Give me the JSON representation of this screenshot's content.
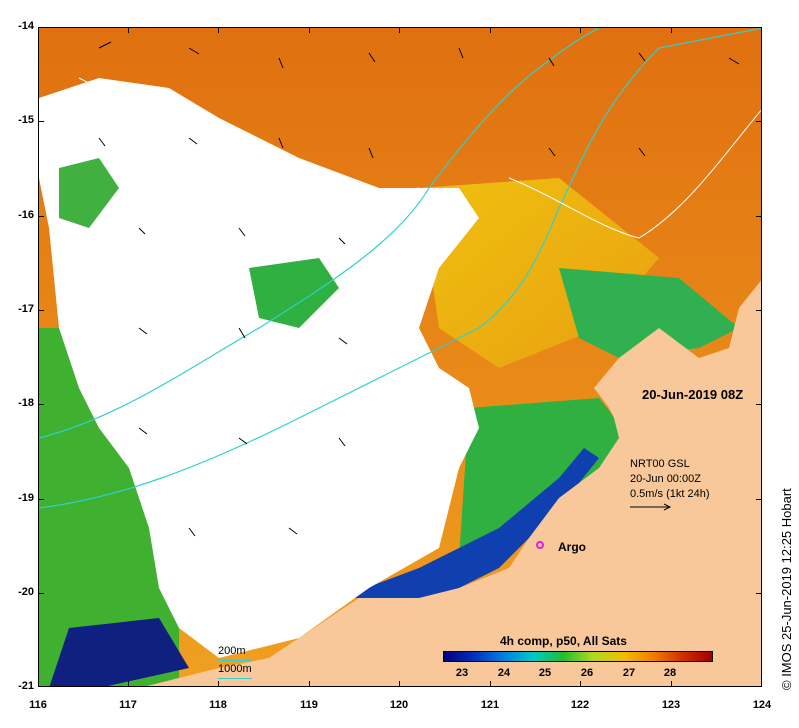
{
  "map": {
    "timestamp": "20-Jun-2019 08Z",
    "lat_ticks": [
      "-14",
      "-15",
      "-16",
      "-17",
      "-18",
      "-19",
      "-20",
      "-21"
    ],
    "lon_ticks": [
      "116",
      "117",
      "118",
      "119",
      "120",
      "121",
      "122",
      "123",
      "124"
    ],
    "lat_range": [
      -21,
      -14
    ],
    "lon_range": [
      116,
      124
    ]
  },
  "current_legend": {
    "line1": "NRT00 GSL",
    "line2": "20-Jun 00:00Z",
    "line3": "0.5m/s (1kt 24h)"
  },
  "argo": {
    "label": "Argo",
    "color": "#e020e0"
  },
  "colorbar": {
    "title": "4h comp, p50, All Sats",
    "labels": [
      "23",
      "24",
      "25",
      "26",
      "27",
      "28"
    ],
    "colors": [
      "#00007a",
      "#0030c0",
      "#0080e0",
      "#00c8c8",
      "#20c030",
      "#b0d820",
      "#f0c000",
      "#f08000",
      "#d03000",
      "#a00000"
    ]
  },
  "depth_legend": {
    "d1": "200m",
    "d2": "1000m"
  },
  "credit": "© IMOS 25-Jun-2019 12:25 Hobart",
  "colors": {
    "land": "#f8c89a",
    "cloud": "#ffffff",
    "isobath": "#30d0d0",
    "contour": "#ffffff"
  }
}
